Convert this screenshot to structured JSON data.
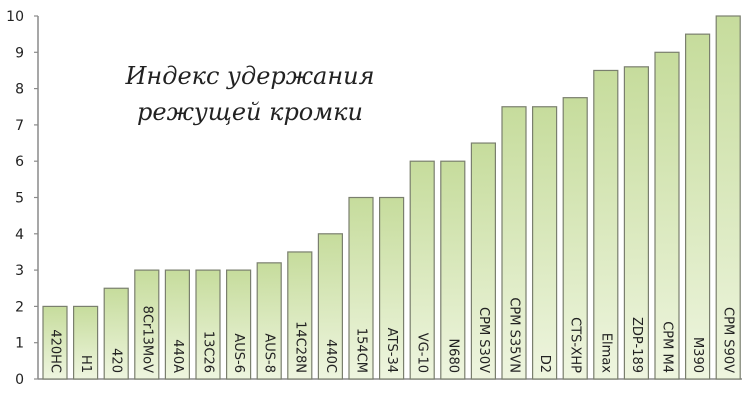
{
  "chart_data": {
    "type": "bar",
    "title_lines": [
      "Индекс удержания",
      "режущей кромки"
    ],
    "categories": [
      "420HC",
      "H1",
      "420",
      "8Cr13MoV",
      "440A",
      "13C26",
      "AUS-6",
      "AUS-8",
      "14C28N",
      "440C",
      "154CM",
      "ATS-34",
      "VG-10",
      "N680",
      "CPM S30V",
      "CPM S35VN",
      "D2",
      "CTS-XHP",
      "Elmax",
      "ZDP-189",
      "CPM M4",
      "M390",
      "CPM S90V"
    ],
    "values": [
      2,
      2,
      2.5,
      3,
      3,
      3,
      3,
      3.2,
      3.5,
      4,
      5,
      5,
      6,
      6,
      6.5,
      7.5,
      7.5,
      7.75,
      8.5,
      8.6,
      9,
      9.5,
      10
    ],
    "ylim": [
      0,
      10
    ],
    "yticks": [
      0,
      1,
      2,
      3,
      4,
      5,
      6,
      7,
      8,
      9,
      10
    ],
    "grid": false,
    "colors": {
      "bar_top": "#c6dc9c",
      "bar_bottom": "#eef5df",
      "bar_stroke": "#7a7f6e",
      "axis": "#8a8a8a",
      "text": "#222222"
    }
  }
}
